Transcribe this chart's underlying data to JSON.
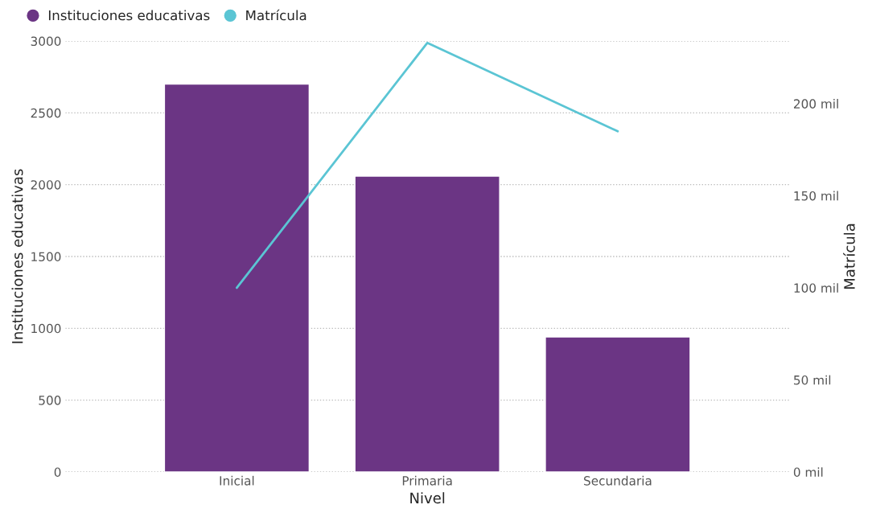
{
  "chart_data": {
    "type": "bar",
    "categories": [
      "Inicial",
      "Primaria",
      "Secundaria"
    ],
    "xlabel": "Nivel",
    "ylabel": "Instituciones educativas",
    "y2label": "Matrícula",
    "series": [
      {
        "name": "Instituciones educativas",
        "color": "#6b3584",
        "values": [
          2700,
          2060,
          940
        ]
      },
      {
        "name": "Matrícula",
        "type": "line",
        "axis": "y2",
        "color": "#5bc5d4",
        "values": [
          100,
          233,
          185
        ]
      }
    ],
    "ylim": [
      0,
      3000
    ],
    "yticks": [
      0,
      500,
      1000,
      1500,
      2000,
      2500,
      3000
    ],
    "y2lim": [
      0,
      234
    ],
    "y2ticks": [
      {
        "value": 0,
        "label": "0 mil"
      },
      {
        "value": 50,
        "label": "50 mil"
      },
      {
        "value": 100,
        "label": "100 mil"
      },
      {
        "value": 150,
        "label": "150 mil"
      },
      {
        "value": 200,
        "label": "200 mil"
      }
    ],
    "grid": "y",
    "legend": "top left",
    "marker": "none",
    "line_style": "solid"
  }
}
